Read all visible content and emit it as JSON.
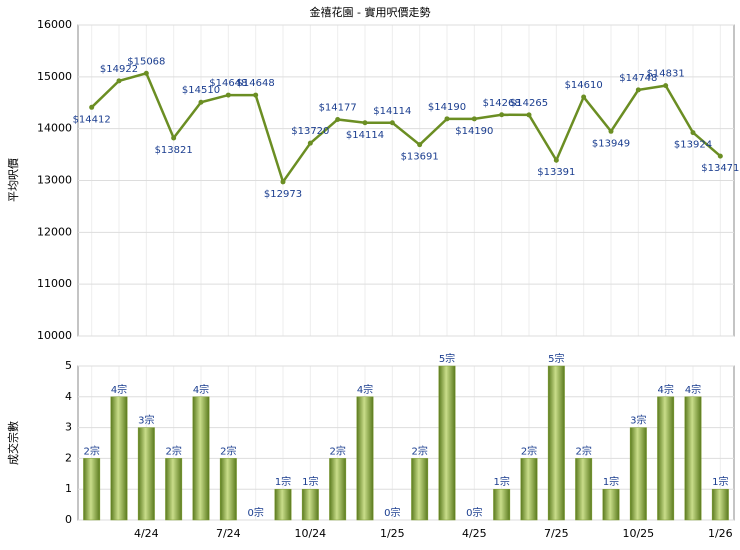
{
  "chart_data": [
    {
      "type": "line",
      "title": "金禧花園 - 實用呎價走勢",
      "y_label": "平均呎價",
      "categories": [
        null,
        null,
        "4/24",
        null,
        null,
        "7/24",
        null,
        null,
        "10/24",
        null,
        null,
        "1/25",
        null,
        null,
        "4/25",
        null,
        null,
        "7/25",
        null,
        null,
        "10/25",
        null,
        null,
        "1/26"
      ],
      "series": [
        {
          "name": "平均呎價",
          "color": "#6b8e23",
          "values": [
            14412,
            14922,
            15068,
            13821,
            14510,
            14648,
            14648,
            12973,
            13720,
            14177,
            14114,
            14114,
            13691,
            14190,
            14190,
            14268,
            14265,
            13391,
            14610,
            13949,
            14748,
            14831,
            13924,
            13471
          ],
          "value_labels": [
            "$14412",
            "$14922",
            "$15068",
            "$13821",
            "$14510",
            "$14648",
            "$14648",
            "$12973",
            "$13720",
            "$14177",
            "$14114",
            "$14114",
            "$13691",
            "$14190",
            "$14190",
            "$14268",
            "$14265",
            "$13391",
            "$14610",
            "$13949",
            "$14748",
            "$14831",
            "$13924",
            "$13471"
          ]
        }
      ],
      "ylim": [
        10000,
        16000
      ],
      "yticks": [
        10000,
        11000,
        12000,
        13000,
        14000,
        15000,
        16000
      ],
      "grid": true
    },
    {
      "type": "bar",
      "y_label": "成交宗數",
      "categories": [
        null,
        null,
        "4/24",
        null,
        null,
        "7/24",
        null,
        null,
        "10/24",
        null,
        null,
        "1/25",
        null,
        null,
        "4/25",
        null,
        null,
        "7/25",
        null,
        null,
        "10/25",
        null,
        null,
        "1/26"
      ],
      "series": [
        {
          "name": "成交宗數",
          "color": "#7a9a2e",
          "values": [
            2,
            4,
            3,
            2,
            4,
            2,
            0,
            1,
            1,
            2,
            4,
            0,
            2,
            5,
            0,
            1,
            2,
            5,
            2,
            1,
            3,
            4,
            4,
            1
          ],
          "value_labels": [
            "2宗",
            "4宗",
            "3宗",
            "2宗",
            "4宗",
            "2宗",
            "0宗",
            "1宗",
            "1宗",
            "2宗",
            "4宗",
            "0宗",
            "2宗",
            "5宗",
            "0宗",
            "1宗",
            "2宗",
            "5宗",
            "2宗",
            "1宗",
            "3宗",
            "4宗",
            "4宗",
            "1宗"
          ]
        }
      ],
      "ylim": [
        0,
        5
      ],
      "yticks": [
        0,
        1,
        2,
        3,
        4,
        5
      ],
      "grid": true
    }
  ]
}
